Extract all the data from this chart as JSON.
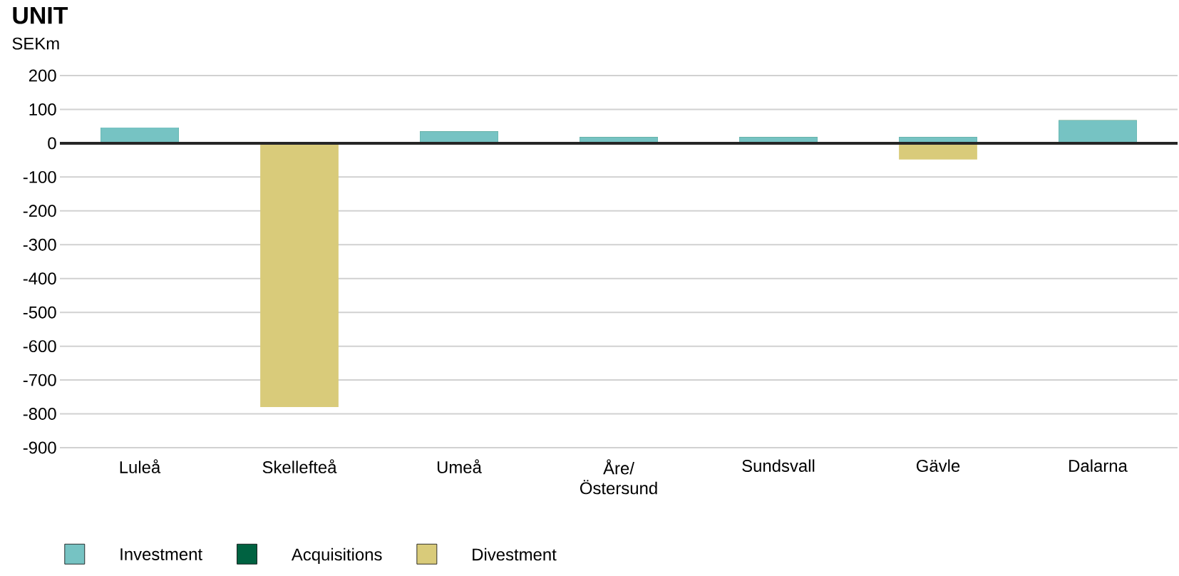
{
  "chart_data": {
    "type": "bar",
    "title": "UNIT",
    "ylabel": "SEKm",
    "categories": [
      "Luleå",
      "Skellefteå",
      "Umeå",
      "Åre/ Östersund",
      "Sundsvall",
      "Gävle",
      "Dalarna"
    ],
    "series": [
      {
        "name": "Investment",
        "color": "#76c3c3",
        "values": [
          46,
          0,
          35,
          18,
          18,
          18,
          68
        ]
      },
      {
        "name": "Acquisitions",
        "color": "#006241",
        "values": [
          0,
          0,
          0,
          0,
          0,
          0,
          0
        ]
      },
      {
        "name": "Divestment",
        "color": "#d9cb7a",
        "values": [
          0,
          -780,
          0,
          0,
          0,
          -48,
          0
        ]
      }
    ],
    "stacked": true,
    "ylim": [
      -900,
      200
    ],
    "yticks": [
      -900,
      -800,
      -700,
      -600,
      -500,
      -400,
      -300,
      -200,
      -100,
      0,
      100,
      200
    ],
    "grid": "y",
    "legend": "bottom"
  }
}
